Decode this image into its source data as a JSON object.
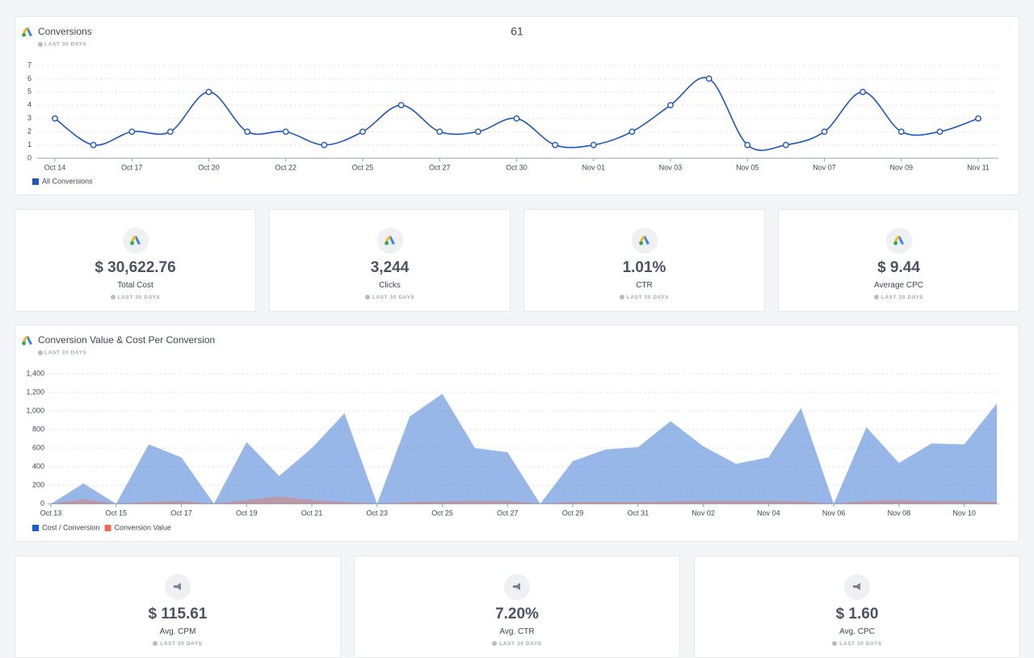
{
  "chart_data": [
    {
      "type": "line",
      "title": "Conversions",
      "subtitle": "LAST 30 DAYS",
      "summary_value": 61,
      "categories": [
        "Oct 14",
        null,
        "Oct 17",
        null,
        "Oct 20",
        null,
        "Oct 22",
        null,
        "Oct 25",
        null,
        "Oct 27",
        null,
        "Oct 30",
        null,
        "Nov 01",
        null,
        "Nov 03",
        null,
        "Nov 05",
        null,
        "Nov 07",
        null,
        "Nov 09",
        null,
        "Nov 11"
      ],
      "series": [
        {
          "name": "All Conversions",
          "color": "#1a56c4",
          "values": [
            3,
            1,
            2,
            2,
            5,
            2,
            2,
            1,
            2,
            4,
            2,
            2,
            3,
            1,
            1,
            2,
            4,
            6,
            1,
            1,
            2,
            5,
            2,
            2,
            3
          ]
        }
      ],
      "ylim": [
        0,
        7
      ],
      "yticks": [
        0,
        1,
        2,
        3,
        4,
        5,
        6,
        7
      ],
      "grid": true,
      "legend": "bottom-left"
    },
    {
      "type": "area",
      "title": "Conversion Value & Cost Per Conversion",
      "subtitle": "LAST 30 DAYS",
      "categories": [
        "Oct 13",
        null,
        "Oct 15",
        null,
        "Oct 17",
        null,
        "Oct 19",
        null,
        "Oct 21",
        null,
        "Oct 23",
        null,
        "Oct 25",
        null,
        "Oct 27",
        null,
        "Oct 29",
        null,
        "Oct 31",
        null,
        "Nov 02",
        null,
        "Nov 04",
        null,
        "Nov 06",
        null,
        "Nov 08",
        null,
        "Nov 10",
        null
      ],
      "series": [
        {
          "name": "Cost / Conversion",
          "color": "#1b5fcf",
          "values": [
            0,
            220,
            0,
            640,
            500,
            0,
            665,
            300,
            600,
            975,
            0,
            940,
            1185,
            600,
            555,
            0,
            460,
            585,
            610,
            890,
            620,
            430,
            500,
            1030,
            0,
            825,
            440,
            650,
            640,
            1080
          ]
        },
        {
          "name": "Conversion Value",
          "color": "#ee6b4d",
          "values": [
            0,
            50,
            0,
            20,
            30,
            0,
            40,
            80,
            40,
            20,
            0,
            20,
            25,
            30,
            30,
            0,
            20,
            20,
            20,
            25,
            30,
            30,
            30,
            25,
            0,
            30,
            40,
            30,
            30,
            20
          ]
        }
      ],
      "ylim": [
        0,
        1400
      ],
      "yticks": [
        0,
        200,
        400,
        600,
        800,
        {
          "value": 1000,
          "label": "1,000"
        },
        {
          "value": 1200,
          "label": "1,200"
        },
        {
          "value": 1400,
          "label": "1,400"
        }
      ],
      "grid": true,
      "legend": "bottom-left"
    }
  ],
  "cards_top": [
    {
      "value": "$ 30,622.76",
      "label": "Total Cost",
      "period": "LAST 30 DAYS"
    },
    {
      "value": "3,244",
      "label": "Clicks",
      "period": "LAST 30 DAYS"
    },
    {
      "value": "1.01%",
      "label": "CTR",
      "period": "LAST 30 DAYS"
    },
    {
      "value": "$ 9.44",
      "label": "Average CPC",
      "period": "LAST 30 DAYS"
    }
  ],
  "cards_bottom": [
    {
      "value": "$ 115.61",
      "label": "Avg. CPM",
      "period": "LAST 30 DAYS"
    },
    {
      "value": "7.20%",
      "label": "Avg. CTR",
      "period": "LAST 30 DAYS"
    },
    {
      "value": "$ 1.60",
      "label": "Avg. CPC",
      "period": "LAST 30 DAYS"
    }
  ]
}
